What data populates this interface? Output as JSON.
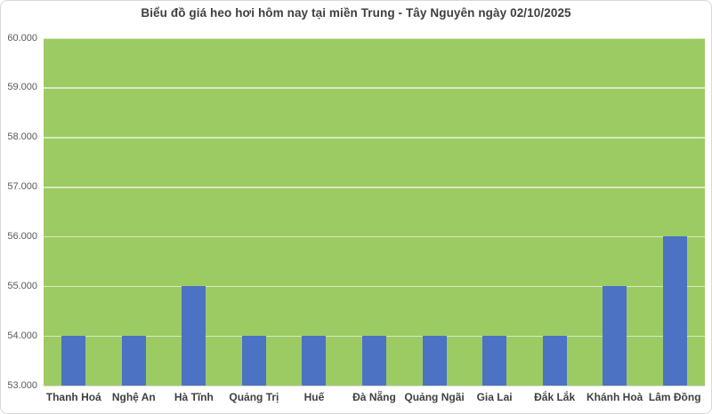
{
  "chart": {
    "title": "Biểu đồ giá heo hơi hôm nay tại miền Trung - Tây Nguyên ngày 02/10/2025"
  },
  "chart_data": {
    "type": "bar",
    "title": "Biểu đồ giá heo hơi hôm nay tại miền Trung - Tây Nguyên ngày 02/10/2025",
    "categories": [
      "Thanh Hoá",
      "Nghệ An",
      "Hà Tĩnh",
      "Quảng Trị",
      "Huế",
      "Đà Nẵng",
      "Quảng Ngãi",
      "Gia Lai",
      "Đắk Lắk",
      "Khánh Hoà",
      "Lâm Đồng"
    ],
    "values": [
      54000,
      54000,
      55000,
      54000,
      54000,
      54000,
      54000,
      54000,
      54000,
      55000,
      56000
    ],
    "xlabel": "",
    "ylabel": "",
    "ylim": [
      53000,
      60000
    ],
    "ytick_step": 1000,
    "ytick_labels": [
      "53.000",
      "54.000",
      "55.000",
      "56.000",
      "57.000",
      "58.000",
      "59.000",
      "60.000"
    ],
    "grid": true,
    "legend_position": "none",
    "colors": {
      "bar": "#4C72C4",
      "plot_background": "#9CCB63",
      "gridline": "rgba(255,255,255,0.6)",
      "title_text": "#3F3F3F",
      "ytick_text": "#595959",
      "xtick_text": "#404040",
      "frame_border": "#D9D9D9"
    }
  }
}
